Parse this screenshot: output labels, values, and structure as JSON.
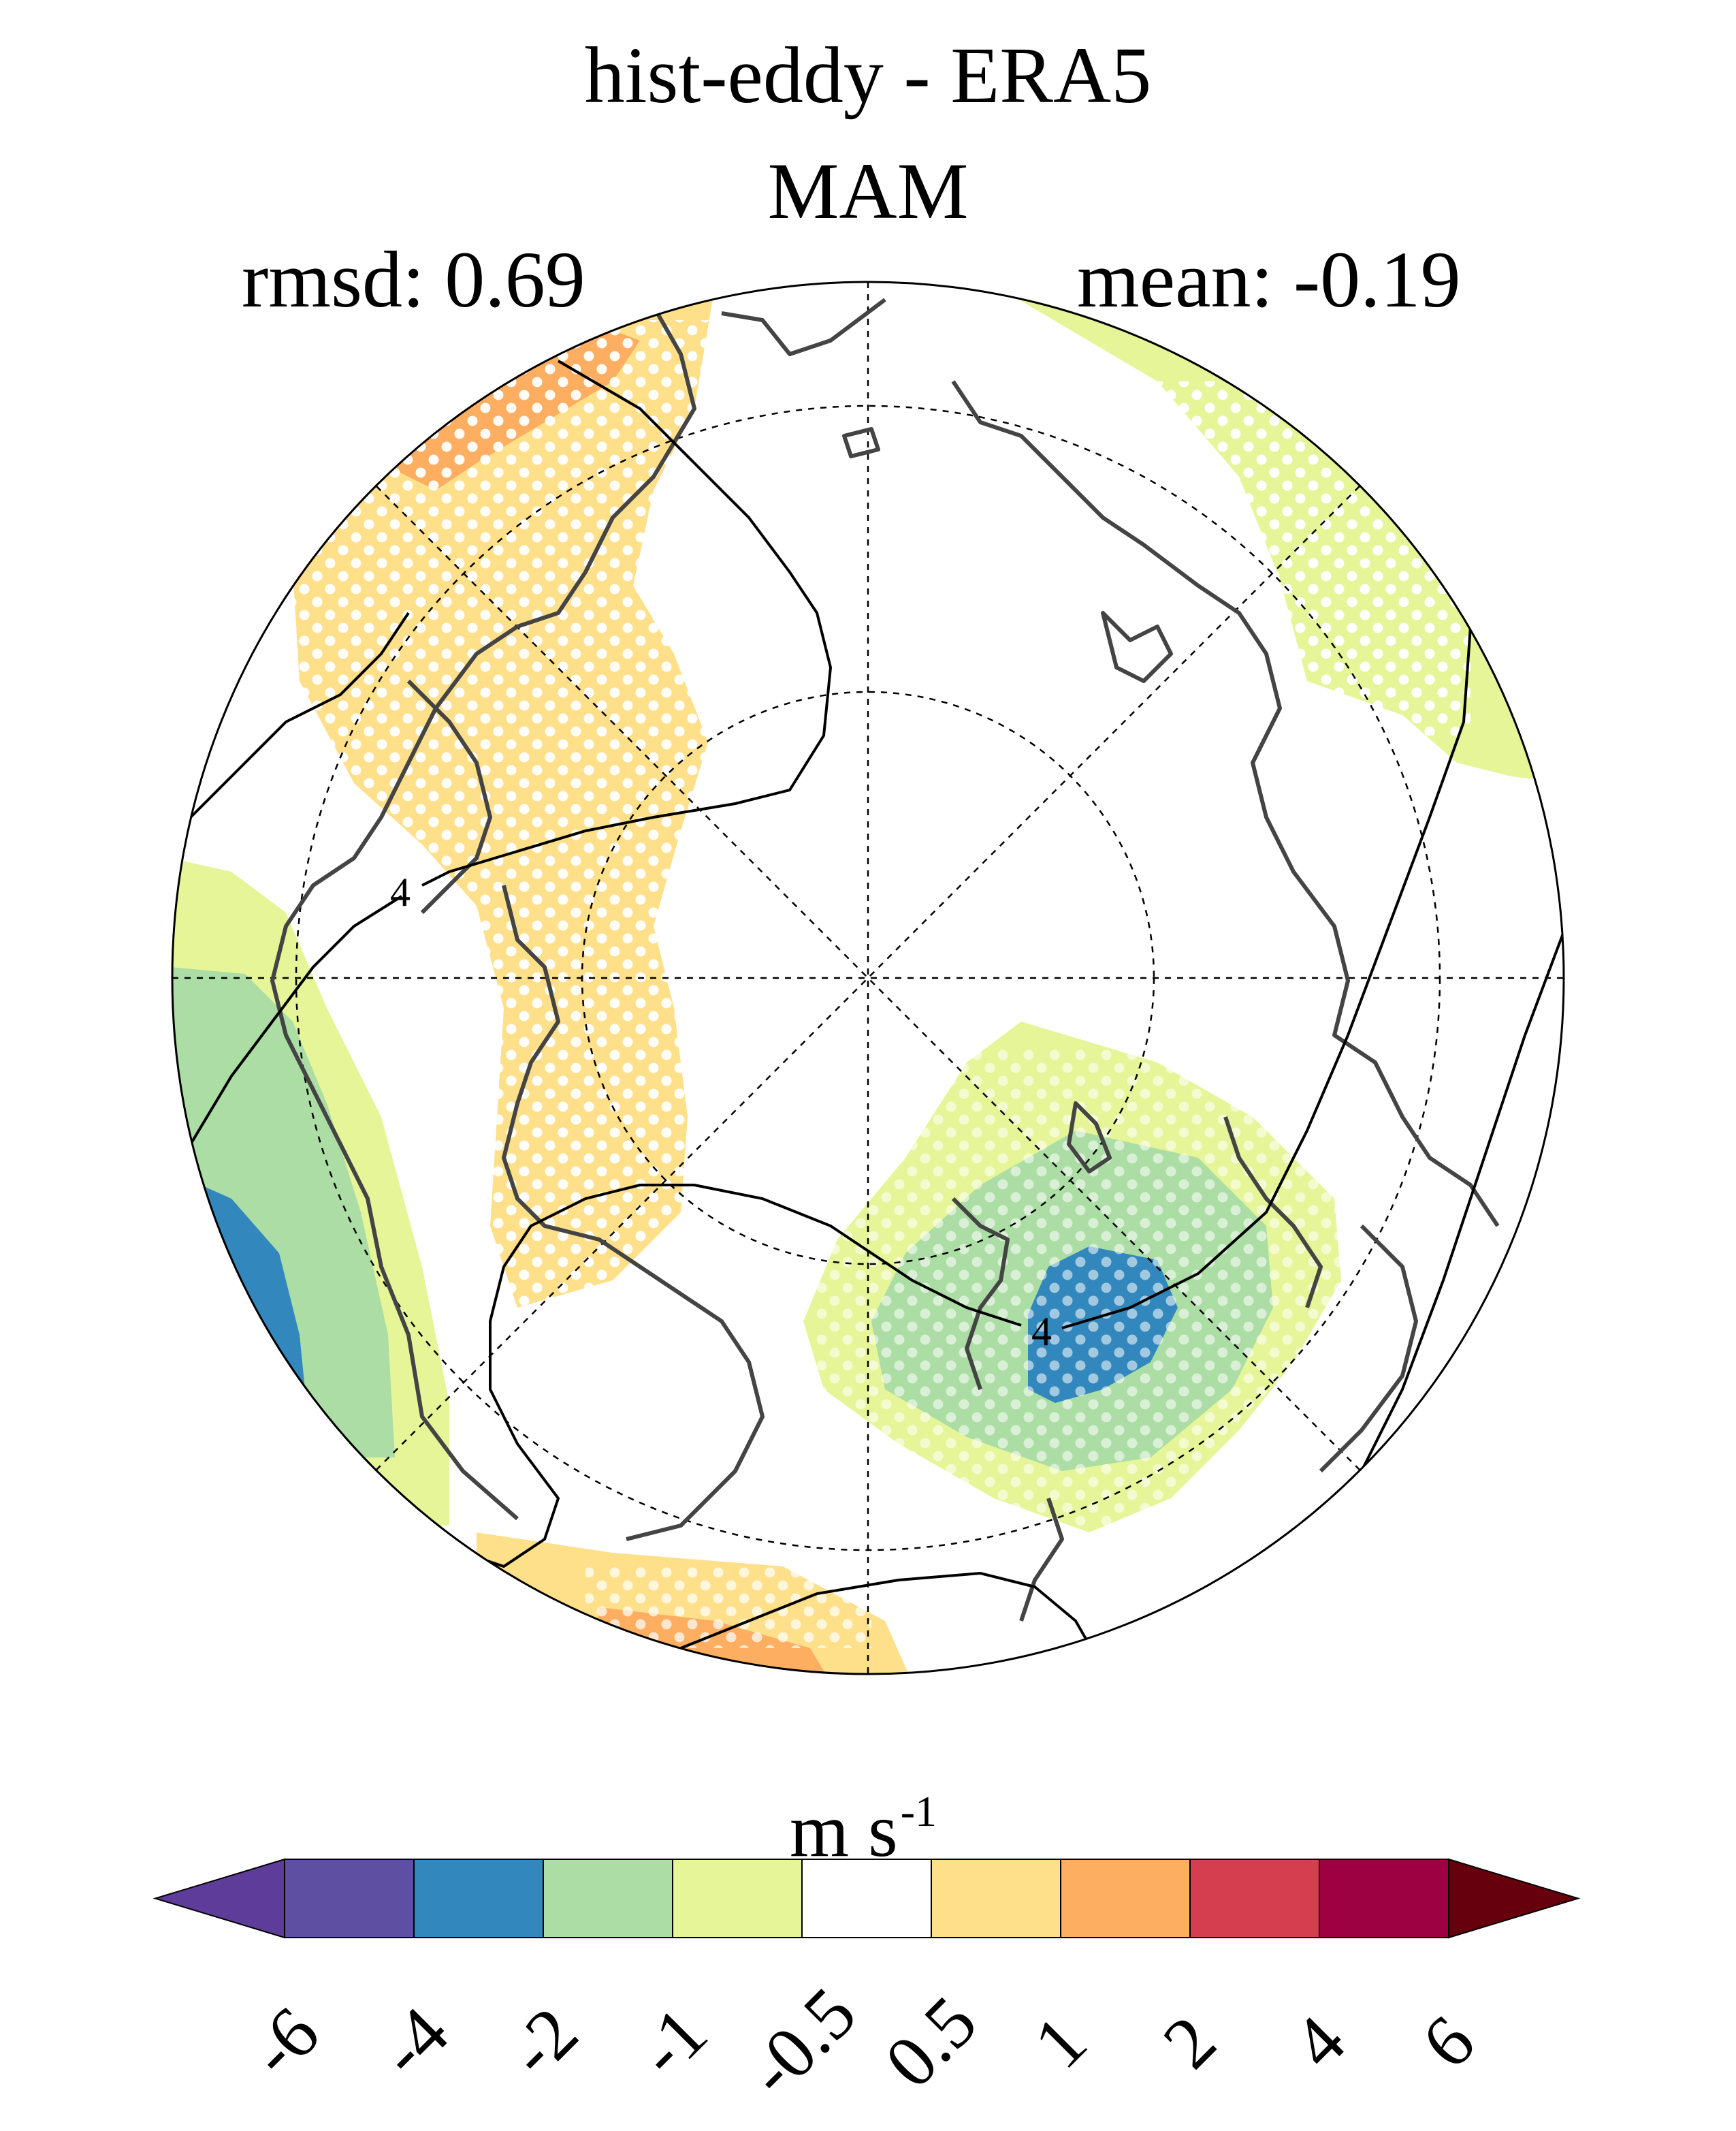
{
  "title": "hist-eddy - ERA5",
  "season": "MAM",
  "stats": {
    "rmsd_label": "rmsd: 0.69",
    "mean_label": "mean: -0.19"
  },
  "contour_labels": [
    "4",
    "4"
  ],
  "colorbar": {
    "units_base": "m s",
    "units_exp": "-1",
    "ticks": [
      "-6",
      "-4",
      "-2",
      "-1",
      "-0.5",
      "0.5",
      "1",
      "2",
      "4",
      "6"
    ],
    "colors": [
      "#5e3c99",
      "#5e4fa2",
      "#3288bd",
      "#abdda4",
      "#e6f598",
      "#ffffff",
      "#fee08b",
      "#fdae61",
      "#d53e4f",
      "#9e0142",
      "#67000d"
    ]
  },
  "map_colors": {
    "orange": "#fdae61",
    "light_orange": "#fee08b",
    "light_green": "#e6f598",
    "green": "#abdda4",
    "blue": "#3288bd"
  }
}
